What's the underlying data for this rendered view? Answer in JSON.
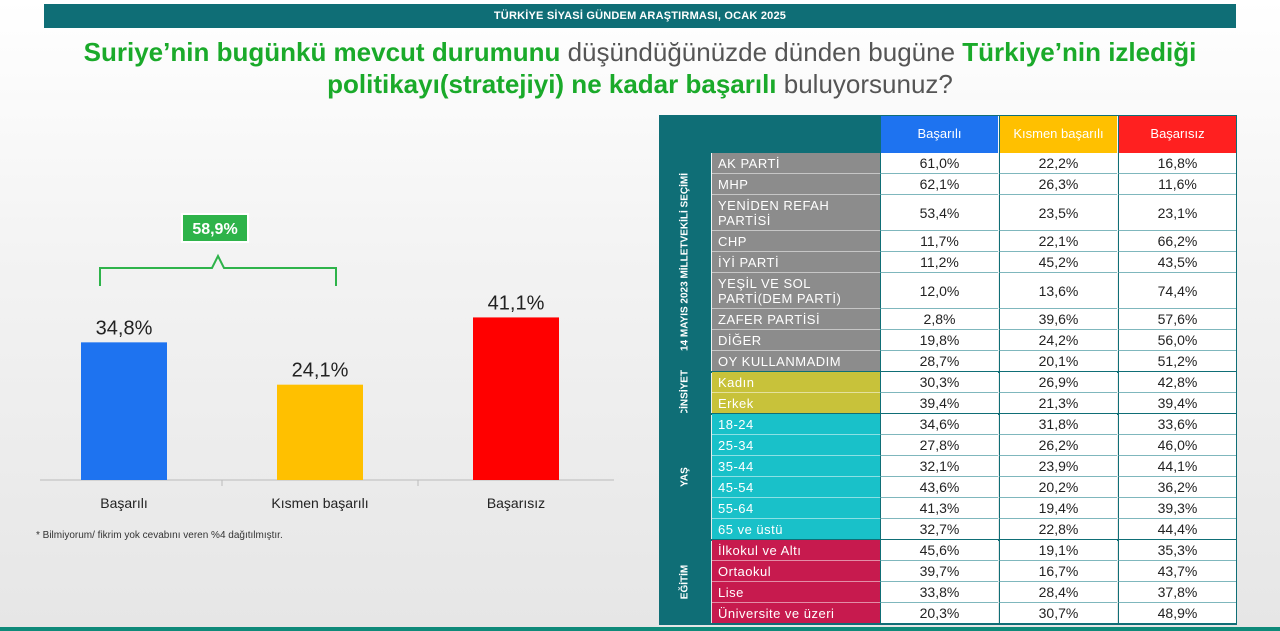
{
  "header": {
    "banner": "TÜRKİYE SİYASİ GÜNDEM ARAŞTIRMASI, OCAK 2025",
    "title_p1": "Suriye’nin bugünkü mevcut durumunu",
    "title_p2": " düşündüğünüzde dünden bugüne ",
    "title_p3": "Türkiye’nin izlediği politikayı(stratejiyi) ne kadar başarılı",
    "title_p4": " buluyorsunuz?"
  },
  "chart_data": {
    "type": "bar",
    "categories": [
      "Başarılı",
      "Kısmen başarılı",
      "Başarısız"
    ],
    "values": [
      34.8,
      24.1,
      41.1
    ],
    "value_labels": [
      "34,8%",
      "24,1%",
      "41,1%"
    ],
    "colors": [
      "#1e73f0",
      "#ffc000",
      "#ff0000"
    ],
    "ylim": [
      0,
      45
    ],
    "bracket_label": "58,9%",
    "footnote": "* Bilmiyorum/ fikrim yok cevabını veren %4 dağıtılmıştır."
  },
  "table": {
    "columns": [
      "Başarılı",
      "Kısmen başarılı",
      "Başarısız"
    ],
    "column_colors": [
      "#1e73f0",
      "#ffc000",
      "#ff2020"
    ],
    "groups": [
      {
        "name": "14 MAYIS 2023 MİLLETVEKİLİ SEÇİMİ",
        "color": "#8c8c8c",
        "text_color": "#ffffff",
        "rows": [
          {
            "label": "AK PARTİ",
            "values": [
              "61,0%",
              "22,2%",
              "16,8%"
            ]
          },
          {
            "label": "MHP",
            "values": [
              "62,1%",
              "26,3%",
              "11,6%"
            ]
          },
          {
            "label": "YENİDEN REFAH PARTİSİ",
            "values": [
              "53,4%",
              "23,5%",
              "23,1%"
            ]
          },
          {
            "label": "CHP",
            "values": [
              "11,7%",
              "22,1%",
              "66,2%"
            ]
          },
          {
            "label": "İYİ PARTİ",
            "values": [
              "11,2%",
              "45,2%",
              "43,5%"
            ]
          },
          {
            "label": "YEŞİL VE SOL PARTİ(DEM PARTİ)",
            "values": [
              "12,0%",
              "13,6%",
              "74,4%"
            ]
          },
          {
            "label": "ZAFER PARTİSİ",
            "values": [
              "2,8%",
              "39,6%",
              "57,6%"
            ]
          },
          {
            "label": "DİĞER",
            "values": [
              "19,8%",
              "24,2%",
              "56,0%"
            ]
          },
          {
            "label": "OY KULLANMADIM",
            "values": [
              "28,7%",
              "20,1%",
              "51,2%"
            ]
          }
        ]
      },
      {
        "name": "CİNSİYET",
        "color": "#c8c23a",
        "text_color": "#ffffff",
        "rows": [
          {
            "label": "Kadın",
            "values": [
              "30,3%",
              "26,9%",
              "42,8%"
            ]
          },
          {
            "label": "Erkek",
            "values": [
              "39,4%",
              "21,3%",
              "39,4%"
            ]
          }
        ]
      },
      {
        "name": "YAŞ",
        "color": "#19c1c9",
        "text_color": "#ffffff",
        "rows": [
          {
            "label": "18-24",
            "values": [
              "34,6%",
              "31,8%",
              "33,6%"
            ]
          },
          {
            "label": "25-34",
            "values": [
              "27,8%",
              "26,2%",
              "46,0%"
            ]
          },
          {
            "label": "35-44",
            "values": [
              "32,1%",
              "23,9%",
              "44,1%"
            ]
          },
          {
            "label": "45-54",
            "values": [
              "43,6%",
              "20,2%",
              "36,2%"
            ]
          },
          {
            "label": "55-64",
            "values": [
              "41,3%",
              "19,4%",
              "39,3%"
            ]
          },
          {
            "label": "65 ve üstü",
            "values": [
              "32,7%",
              "22,8%",
              "44,4%"
            ]
          }
        ]
      },
      {
        "name": "EĞİTİM",
        "color": "#c71a4e",
        "text_color": "#ffffff",
        "rows": [
          {
            "label": "İlkokul ve Altı",
            "values": [
              "45,6%",
              "19,1%",
              "35,3%"
            ]
          },
          {
            "label": "Ortaokul",
            "values": [
              "39,7%",
              "16,7%",
              "43,7%"
            ]
          },
          {
            "label": "Lise",
            "values": [
              "33,8%",
              "28,4%",
              "37,8%"
            ]
          },
          {
            "label": "Üniversite ve üzeri",
            "values": [
              "20,3%",
              "30,7%",
              "48,9%"
            ]
          }
        ]
      }
    ]
  }
}
